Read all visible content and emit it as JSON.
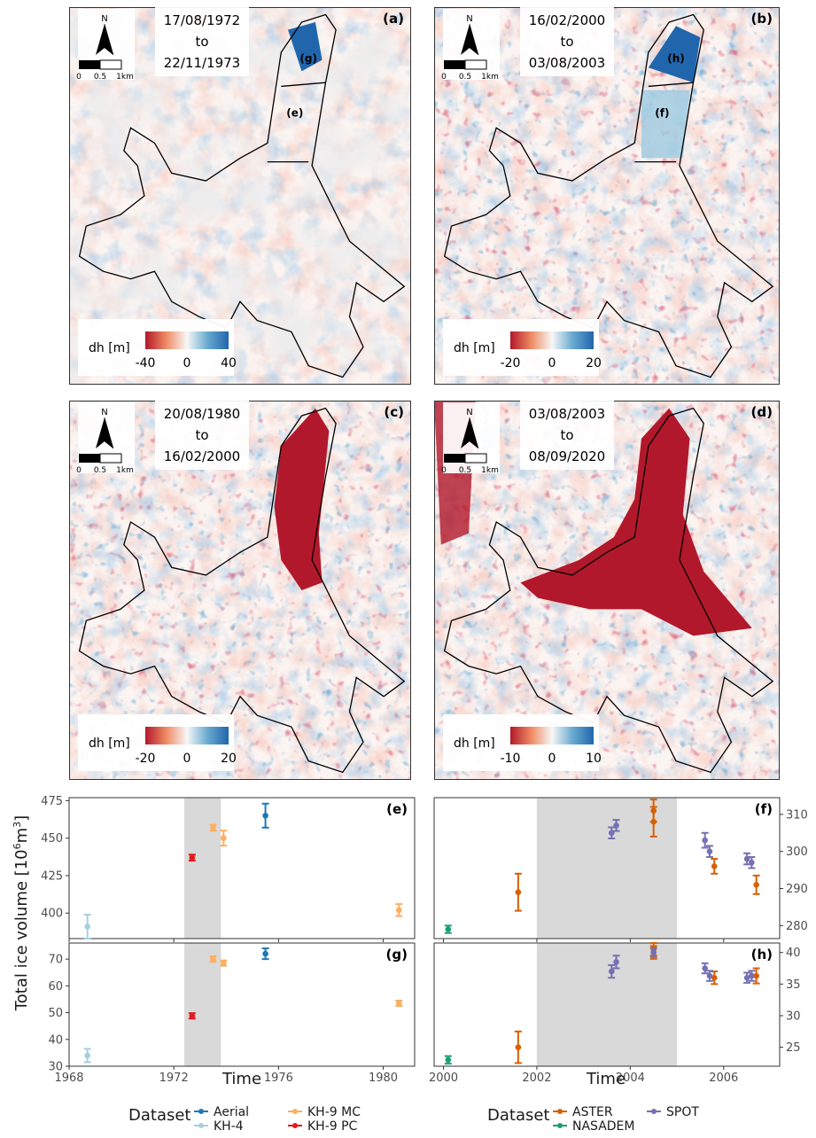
{
  "maps": [
    {
      "id": "a",
      "label": "(a)",
      "date_from": "17/08/1972",
      "to_word": "to",
      "date_to": "22/11/1973",
      "cbar_min": "-40",
      "cbar_mid": "0",
      "cbar_max": "40",
      "cbar_title": "dh [m]",
      "zones": [
        {
          "label": "(g)",
          "style": "dark"
        },
        {
          "label": "(e)",
          "style": "plain"
        }
      ],
      "theme": "nodata"
    },
    {
      "id": "b",
      "label": "(b)",
      "date_from": "16/02/2000",
      "to_word": "to",
      "date_to": "03/08/2003",
      "cbar_min": "-20",
      "cbar_mid": "0",
      "cbar_max": "20",
      "cbar_title": "dh [m]",
      "zones": [
        {
          "label": "(h)",
          "style": "dark"
        },
        {
          "label": "(f)",
          "style": "light"
        }
      ],
      "theme": "mixed"
    },
    {
      "id": "c",
      "label": "(c)",
      "date_from": "20/08/1980",
      "to_word": "to",
      "date_to": "16/02/2000",
      "cbar_min": "-20",
      "cbar_mid": "0",
      "cbar_max": "20",
      "cbar_title": "dh [m]",
      "zones": [],
      "theme": "loss-tongue"
    },
    {
      "id": "d",
      "label": "(d)",
      "date_from": "03/08/2003",
      "to_word": "to",
      "date_to": "08/09/2020",
      "cbar_min": "-10",
      "cbar_mid": "0",
      "cbar_max": "10",
      "cbar_title": "dh [m]",
      "zones": [],
      "theme": "loss-large"
    }
  ],
  "north": {
    "letter": "N",
    "scale_0": "0",
    "scale_mid": "0.5",
    "scale_end": "1km"
  },
  "colors": {
    "loss": "#b2182b",
    "gain": "#2166ac",
    "neutral": "#f7f7f7",
    "nodata": "#d9d9d9",
    "Aerial": "#1f78b4",
    "KH-4": "#a6cee3",
    "KH-9 MC": "#fdae61",
    "KH-9 PC": "#e31a1c",
    "ASTER": "#d95f02",
    "NASADEM": "#1b9e77",
    "SPOT": "#7570b3",
    "shade": "#d9d9d9"
  },
  "y_axis_title": "Total ice volume [10",
  "y_axis_sup": "6",
  "y_axis_unit": "m",
  "y_axis_sup2": "3",
  "y_axis_close": "]",
  "x_axis_title": "Time",
  "legend_left": {
    "title": "Dataset",
    "entries": [
      "Aerial",
      "KH-4",
      "KH-9 MC",
      "KH-9 PC"
    ]
  },
  "legend_right": {
    "title": "Dataset",
    "entries": [
      "ASTER",
      "NASADEM",
      "SPOT"
    ]
  },
  "chart_data": [
    {
      "type": "scatter",
      "panel": "(e)",
      "xlim": [
        1968,
        1981.2
      ],
      "ylim": [
        383,
        477
      ],
      "xticks": [
        "1968",
        "1972",
        "1976",
        "1980"
      ],
      "yticks": [
        "400",
        "425",
        "450",
        "475"
      ],
      "shade": [
        1972.4,
        1973.8
      ],
      "series": [
        {
          "name": "KH-4",
          "points": [
            [
              1968.7,
              391,
              8
            ]
          ]
        },
        {
          "name": "KH-9 PC",
          "points": [
            [
              1972.7,
              437,
              2
            ]
          ]
        },
        {
          "name": "KH-9 MC",
          "points": [
            [
              1973.5,
              457,
              2
            ],
            [
              1973.9,
              450,
              5
            ],
            [
              1980.6,
              402,
              4
            ]
          ]
        },
        {
          "name": "Aerial",
          "points": [
            [
              1975.5,
              465,
              8
            ]
          ]
        }
      ]
    },
    {
      "type": "scatter",
      "panel": "(g)",
      "xlim": [
        1968,
        1981.2
      ],
      "ylim": [
        30,
        76
      ],
      "xticks": [
        "1968",
        "1972",
        "1976",
        "1980"
      ],
      "yticks": [
        "30",
        "40",
        "50",
        "60",
        "70"
      ],
      "shade": [
        1972.4,
        1973.8
      ],
      "series": [
        {
          "name": "KH-4",
          "points": [
            [
              1968.7,
              34,
              2.5
            ]
          ]
        },
        {
          "name": "KH-9 PC",
          "points": [
            [
              1972.7,
              48.8,
              1
            ]
          ]
        },
        {
          "name": "KH-9 MC",
          "points": [
            [
              1973.5,
              70,
              1
            ],
            [
              1973.9,
              68.5,
              1
            ],
            [
              1980.6,
              53.5,
              1
            ]
          ]
        },
        {
          "name": "Aerial",
          "points": [
            [
              1975.5,
              72,
              2
            ]
          ]
        }
      ]
    },
    {
      "type": "scatter",
      "panel": "(f)",
      "xlim": [
        1999.8,
        2007.2
      ],
      "ylim": [
        276.5,
        314.5
      ],
      "xticks": [
        "2000",
        "2002",
        "2004",
        "2006"
      ],
      "yticks": [
        "280",
        "290",
        "300",
        "310"
      ],
      "shade": [
        2002,
        2005
      ],
      "series": [
        {
          "name": "NASADEM",
          "points": [
            [
              2000.1,
              279,
              1
            ]
          ]
        },
        {
          "name": "ASTER",
          "points": [
            [
              2001.6,
              289,
              5
            ],
            [
              2004.5,
              311,
              3
            ],
            [
              2004.5,
              308,
              4
            ],
            [
              2005.8,
              296,
              2
            ],
            [
              2006.7,
              291,
              2.5
            ]
          ]
        },
        {
          "name": "SPOT",
          "points": [
            [
              2003.6,
              305,
              1.5
            ],
            [
              2003.7,
              307,
              1.5
            ],
            [
              2005.6,
              303,
              2
            ],
            [
              2005.7,
              300,
              1.5
            ],
            [
              2006.5,
              298,
              1.5
            ],
            [
              2006.6,
              297,
              1.5
            ]
          ]
        }
      ]
    },
    {
      "type": "scatter",
      "panel": "(h)",
      "xlim": [
        1999.8,
        2007.2
      ],
      "ylim": [
        22,
        41.5
      ],
      "xticks": [
        "2000",
        "2002",
        "2004",
        "2006"
      ],
      "yticks": [
        "25",
        "30",
        "35",
        "40"
      ],
      "shade": [
        2002,
        2005
      ],
      "series": [
        {
          "name": "NASADEM",
          "points": [
            [
              2000.1,
              23,
              0.6
            ]
          ]
        },
        {
          "name": "ASTER",
          "points": [
            [
              2001.6,
              25,
              2.5
            ],
            [
              2004.5,
              40,
              1
            ],
            [
              2004.5,
              40.5,
              1
            ],
            [
              2005.8,
              36,
              1
            ],
            [
              2006.7,
              36.3,
              1.2
            ]
          ]
        },
        {
          "name": "SPOT",
          "points": [
            [
              2003.6,
              37,
              1
            ],
            [
              2003.7,
              38.5,
              1
            ],
            [
              2004.5,
              40,
              0.7
            ],
            [
              2005.6,
              37.5,
              0.8
            ],
            [
              2005.7,
              36.3,
              0.8
            ],
            [
              2006.5,
              36,
              0.8
            ],
            [
              2006.6,
              36.3,
              0.8
            ]
          ]
        }
      ]
    }
  ]
}
